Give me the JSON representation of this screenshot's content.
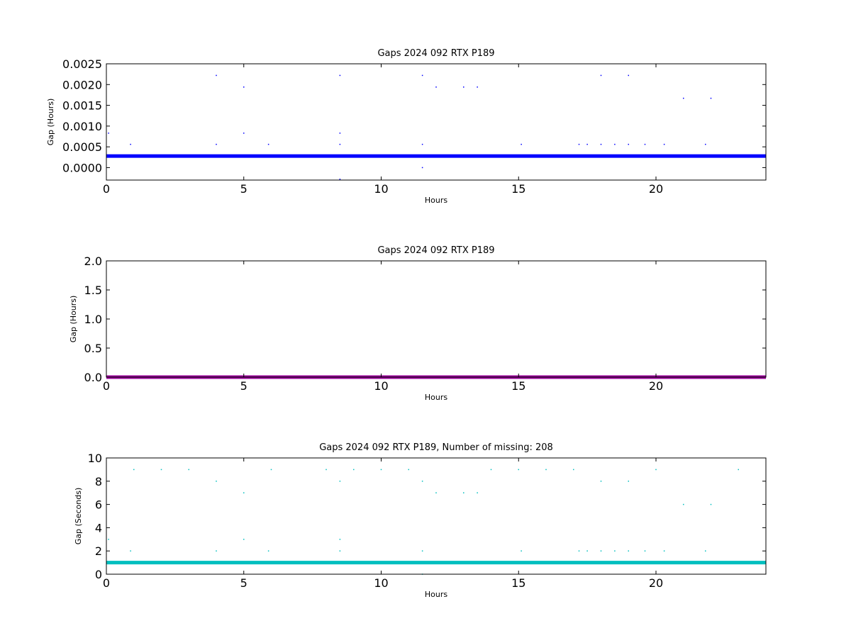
{
  "chart_data": [
    {
      "type": "scatter",
      "title": "Gaps 2024 092 RTX  P189",
      "xlabel": "Hours",
      "ylabel": "Gap (Hours)",
      "xlim": [
        0,
        24
      ],
      "ylim": [
        -0.0003,
        0.0025
      ],
      "xticks": [
        0,
        5,
        10,
        15,
        20
      ],
      "yticks": [
        0.0,
        0.0005,
        0.001,
        0.0015,
        0.002,
        0.0025
      ],
      "ytick_labels": [
        "0.0000",
        "0.0005",
        "0.0010",
        "0.0015",
        "0.0020",
        "0.0025"
      ],
      "grid": false,
      "series": [
        {
          "color": "#0000ff",
          "baseline": 0.000278,
          "points": [
            [
              0.08,
              0.00083
            ],
            [
              0.88,
              0.00056
            ],
            [
              4.0,
              0.00222
            ],
            [
              4.0,
              0.00056
            ],
            [
              5.0,
              0.00194
            ],
            [
              5.0,
              0.00083
            ],
            [
              5.9,
              0.00056
            ],
            [
              8.5,
              0.00222
            ],
            [
              8.5,
              0.00083
            ],
            [
              8.5,
              0.00056
            ],
            [
              8.5,
              -0.00028
            ],
            [
              11.5,
              0.00222
            ],
            [
              11.5,
              0.00056
            ],
            [
              11.5,
              0.0
            ],
            [
              12.0,
              0.00194
            ],
            [
              13.0,
              0.00194
            ],
            [
              13.5,
              0.00194
            ],
            [
              15.1,
              0.00056
            ],
            [
              17.2,
              0.00056
            ],
            [
              17.5,
              0.00056
            ],
            [
              18.0,
              0.00222
            ],
            [
              18.0,
              0.00056
            ],
            [
              18.5,
              0.00056
            ],
            [
              19.0,
              0.00222
            ],
            [
              19.0,
              0.00056
            ],
            [
              19.6,
              0.00056
            ],
            [
              20.3,
              0.00056
            ],
            [
              21.0,
              0.00167
            ],
            [
              21.8,
              0.00056
            ],
            [
              22.0,
              0.00167
            ]
          ]
        }
      ]
    },
    {
      "type": "scatter",
      "title": "Gaps 2024 092 RTX  P189",
      "xlabel": "Hours",
      "ylabel": "Gap (Hours)",
      "xlim": [
        0,
        24
      ],
      "ylim": [
        0,
        2.0
      ],
      "xticks": [
        0,
        5,
        10,
        15,
        20
      ],
      "yticks": [
        0.0,
        0.5,
        1.0,
        1.5,
        2.0
      ],
      "ytick_labels": [
        "0.0",
        "0.5",
        "1.0",
        "1.5",
        "2.0"
      ],
      "grid": false,
      "series": [
        {
          "color": "#990099",
          "baseline": 0.0,
          "points": []
        }
      ]
    },
    {
      "type": "scatter",
      "title": "Gaps 2024 092 RTX  P189, Number of missing: 208",
      "xlabel": "Hours",
      "ylabel": "Gap (Seconds)",
      "xlim": [
        0,
        24
      ],
      "ylim": [
        0,
        10
      ],
      "xticks": [
        0,
        5,
        10,
        15,
        20
      ],
      "yticks": [
        0,
        2,
        4,
        6,
        8,
        10
      ],
      "ytick_labels": [
        "0",
        "2",
        "4",
        "6",
        "8",
        "10"
      ],
      "grid": false,
      "series": [
        {
          "color": "#00bfbf",
          "baseline": 1,
          "points": [
            [
              0.08,
              3
            ],
            [
              0.88,
              2
            ],
            [
              1.0,
              9
            ],
            [
              2.0,
              9
            ],
            [
              3.0,
              9
            ],
            [
              4.0,
              8
            ],
            [
              4.0,
              2
            ],
            [
              5.0,
              7
            ],
            [
              5.0,
              3
            ],
            [
              5.9,
              2
            ],
            [
              6.0,
              9
            ],
            [
              8.0,
              9
            ],
            [
              8.5,
              8
            ],
            [
              8.5,
              3
            ],
            [
              8.5,
              2
            ],
            [
              9.0,
              9
            ],
            [
              10.0,
              9
            ],
            [
              11.0,
              9
            ],
            [
              11.5,
              8
            ],
            [
              11.5,
              2
            ],
            [
              11.5,
              0
            ],
            [
              12.0,
              7
            ],
            [
              13.0,
              7
            ],
            [
              13.5,
              7
            ],
            [
              14.0,
              9
            ],
            [
              15.0,
              9
            ],
            [
              15.1,
              2
            ],
            [
              16.0,
              9
            ],
            [
              17.0,
              9
            ],
            [
              17.2,
              2
            ],
            [
              17.5,
              2
            ],
            [
              18.0,
              8
            ],
            [
              18.0,
              2
            ],
            [
              18.5,
              2
            ],
            [
              19.0,
              8
            ],
            [
              19.0,
              2
            ],
            [
              19.6,
              2
            ],
            [
              20.0,
              9
            ],
            [
              20.3,
              2
            ],
            [
              21.0,
              6
            ],
            [
              21.8,
              2
            ],
            [
              22.0,
              6
            ],
            [
              23.0,
              9
            ]
          ]
        }
      ]
    }
  ]
}
